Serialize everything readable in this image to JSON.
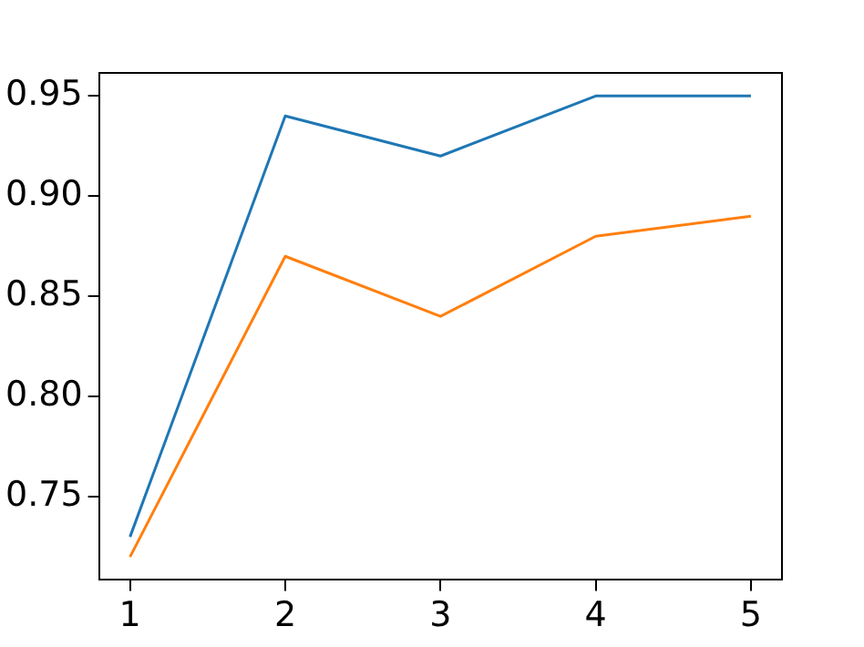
{
  "chart_data": {
    "type": "line",
    "x": [
      1,
      2,
      3,
      4,
      5
    ],
    "series": [
      {
        "color": "#1f77b4",
        "values": [
          0.73,
          0.94,
          0.92,
          0.95,
          0.95
        ]
      },
      {
        "color": "#ff7f0e",
        "values": [
          0.72,
          0.87,
          0.84,
          0.88,
          0.89
        ]
      }
    ],
    "xlim": [
      0.8,
      5.2
    ],
    "xticks": [
      1,
      2,
      3,
      4,
      5
    ],
    "ylim": [
      0.7085,
      0.9615
    ],
    "yticks": [
      {
        "value": 0.75,
        "label": "0.75"
      },
      {
        "value": 0.8,
        "label": "0.80"
      },
      {
        "value": 0.85,
        "label": "0.85"
      },
      {
        "value": 0.9,
        "label": "0.90"
      },
      {
        "value": 0.95,
        "label": "0.95"
      }
    ],
    "grid": false,
    "legend": false,
    "marker": "none",
    "line_style": "solid"
  }
}
